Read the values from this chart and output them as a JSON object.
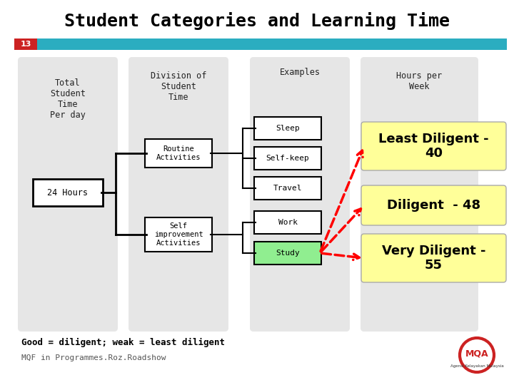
{
  "title": "Student Categories and Learning Time",
  "slide_num": "13",
  "bg_color": "#ffffff",
  "title_color": "#000000",
  "teal_bar_color": "#2BADC0",
  "slide_num_bg": "#cc2222",
  "col1_header": "Total\nStudent\nTime\nPer day",
  "col2_header": "Division of\nStudent\nTime",
  "col3_header": "Examples",
  "col4_header": "Hours per\nWeek",
  "box_24h": "24 Hours",
  "box_routine": "Routine\nActivities",
  "box_self_imp": "Self\nimprovement\nActivities",
  "examples": [
    "Sleep",
    "Self-keep",
    "Travel",
    "Work",
    "Study"
  ],
  "study_box_color": "#90EE90",
  "footer1": "Good = diligent; weak = least diligent",
  "footer2": "MQF in Programmes.Roz.Roadshow",
  "col_bg": "#C8C8C8",
  "diligent_bg": "#FFFF99",
  "diligent_labels": [
    "Least Diligent -\n40",
    "Diligent  - 48",
    "Very Diligent -\n55"
  ]
}
